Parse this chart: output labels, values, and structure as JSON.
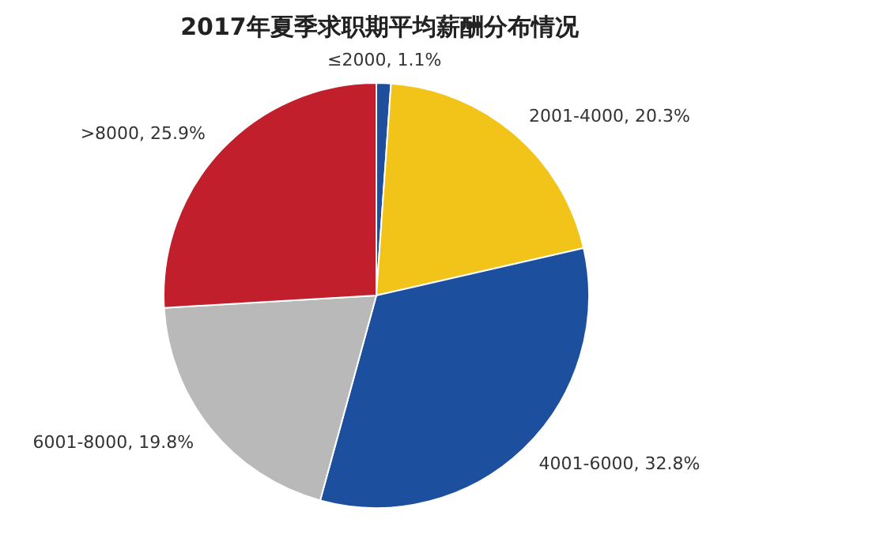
{
  "chart_data": {
    "type": "pie",
    "title": "2017年夏季求职期平均薪酬分布情况",
    "categories": [
      "≤2000",
      "2001-4000",
      "4001-6000",
      "6001-8000",
      ">8000"
    ],
    "values": [
      1.1,
      20.3,
      32.8,
      19.8,
      25.9
    ],
    "colors": [
      "#1f4e9c",
      "#f2c41a",
      "#1d4f9f",
      "#b9b9b9",
      "#c01f2b"
    ],
    "value_labels": [
      "1.1%",
      "20.3%",
      "32.8%",
      "19.8%",
      "25.9%"
    ]
  }
}
